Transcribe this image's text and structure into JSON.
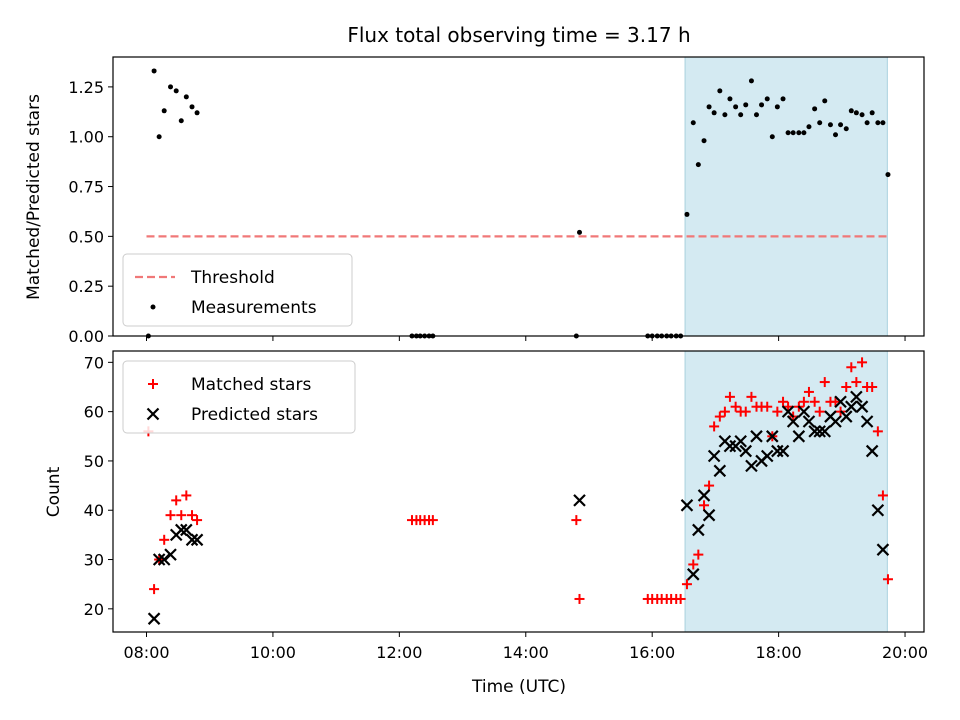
{
  "figure": {
    "title": "Flux total observing time = 3.17 h",
    "xlabel": "Time (UTC)",
    "x_ticks": [
      "08:00",
      "10:00",
      "12:00",
      "14:00",
      "16:00",
      "18:00",
      "20:00"
    ]
  },
  "chart_data": [
    {
      "type": "scatter",
      "ylabel": "Matched/Predicted stars",
      "xlim": [
        7.47,
        20.3
      ],
      "ylim": [
        0,
        1.4
      ],
      "y_ticks": [
        "0.00",
        "0.25",
        "0.50",
        "0.75",
        "1.00",
        "1.25"
      ],
      "shaded_span": [
        16.52,
        19.72
      ],
      "shade_color": "#d4eaf2",
      "legend": "lower-left",
      "threshold": {
        "name": "Threshold",
        "value": 0.5,
        "x": [
          8.0,
          19.72
        ],
        "color": "#f07878"
      },
      "series": [
        {
          "name": "Measurements",
          "color": "#000000",
          "points": [
            [
              8.03,
              0.0
            ],
            [
              8.12,
              1.33
            ],
            [
              8.2,
              1.0
            ],
            [
              8.28,
              1.13
            ],
            [
              8.38,
              1.25
            ],
            [
              8.47,
              1.23
            ],
            [
              8.55,
              1.08
            ],
            [
              8.63,
              1.2
            ],
            [
              8.72,
              1.15
            ],
            [
              8.8,
              1.12
            ],
            [
              12.2,
              0.0
            ],
            [
              12.27,
              0.0
            ],
            [
              12.33,
              0.0
            ],
            [
              12.4,
              0.0
            ],
            [
              12.47,
              0.0
            ],
            [
              12.53,
              0.0
            ],
            [
              14.8,
              0.0
            ],
            [
              14.85,
              0.52
            ],
            [
              15.93,
              0.0
            ],
            [
              16.0,
              0.0
            ],
            [
              16.08,
              0.0
            ],
            [
              16.15,
              0.0
            ],
            [
              16.23,
              0.0
            ],
            [
              16.3,
              0.0
            ],
            [
              16.38,
              0.0
            ],
            [
              16.45,
              0.0
            ],
            [
              16.55,
              0.61
            ],
            [
              16.65,
              1.07
            ],
            [
              16.73,
              0.86
            ],
            [
              16.82,
              0.98
            ],
            [
              16.9,
              1.15
            ],
            [
              16.98,
              1.12
            ],
            [
              17.07,
              1.23
            ],
            [
              17.15,
              1.11
            ],
            [
              17.23,
              1.19
            ],
            [
              17.32,
              1.15
            ],
            [
              17.4,
              1.11
            ],
            [
              17.48,
              1.16
            ],
            [
              17.57,
              1.28
            ],
            [
              17.65,
              1.11
            ],
            [
              17.73,
              1.16
            ],
            [
              17.82,
              1.19
            ],
            [
              17.9,
              1.0
            ],
            [
              17.98,
              1.15
            ],
            [
              18.07,
              1.19
            ],
            [
              18.15,
              1.02
            ],
            [
              18.23,
              1.02
            ],
            [
              18.32,
              1.02
            ],
            [
              18.4,
              1.02
            ],
            [
              18.48,
              1.05
            ],
            [
              18.57,
              1.14
            ],
            [
              18.65,
              1.07
            ],
            [
              18.73,
              1.18
            ],
            [
              18.82,
              1.06
            ],
            [
              18.9,
              1.01
            ],
            [
              18.98,
              1.06
            ],
            [
              19.07,
              1.04
            ],
            [
              19.15,
              1.13
            ],
            [
              19.23,
              1.12
            ],
            [
              19.32,
              1.11
            ],
            [
              19.4,
              1.07
            ],
            [
              19.48,
              1.12
            ],
            [
              19.57,
              1.07
            ],
            [
              19.65,
              1.07
            ],
            [
              19.73,
              0.81
            ]
          ]
        }
      ]
    },
    {
      "type": "scatter",
      "ylabel": "Count",
      "xlim": [
        7.47,
        20.3
      ],
      "ylim": [
        15.3,
        72.3
      ],
      "y_ticks": [
        "20",
        "30",
        "40",
        "50",
        "60",
        "70"
      ],
      "shaded_span": [
        16.52,
        19.72
      ],
      "shade_color": "#d4eaf2",
      "legend": "upper-left",
      "series": [
        {
          "name": "Matched stars",
          "marker": "plus",
          "color": "#ff0000",
          "points": [
            [
              8.03,
              56
            ],
            [
              8.12,
              24
            ],
            [
              8.2,
              30
            ],
            [
              8.28,
              34
            ],
            [
              8.38,
              39
            ],
            [
              8.47,
              42
            ],
            [
              8.55,
              39
            ],
            [
              8.63,
              43
            ],
            [
              8.72,
              39
            ],
            [
              8.8,
              38
            ],
            [
              12.2,
              38
            ],
            [
              12.27,
              38
            ],
            [
              12.33,
              38
            ],
            [
              12.4,
              38
            ],
            [
              12.47,
              38
            ],
            [
              12.53,
              38
            ],
            [
              14.8,
              38
            ],
            [
              14.85,
              22
            ],
            [
              15.93,
              22
            ],
            [
              16.0,
              22
            ],
            [
              16.08,
              22
            ],
            [
              16.15,
              22
            ],
            [
              16.23,
              22
            ],
            [
              16.3,
              22
            ],
            [
              16.38,
              22
            ],
            [
              16.45,
              22
            ],
            [
              16.55,
              25
            ],
            [
              16.65,
              29
            ],
            [
              16.73,
              31
            ],
            [
              16.82,
              41
            ],
            [
              16.9,
              45
            ],
            [
              16.98,
              57
            ],
            [
              17.07,
              59
            ],
            [
              17.15,
              60
            ],
            [
              17.23,
              63
            ],
            [
              17.32,
              61
            ],
            [
              17.4,
              60
            ],
            [
              17.48,
              60
            ],
            [
              17.57,
              63
            ],
            [
              17.65,
              61
            ],
            [
              17.73,
              61
            ],
            [
              17.82,
              61
            ],
            [
              17.9,
              55
            ],
            [
              17.98,
              60
            ],
            [
              18.07,
              62
            ],
            [
              18.15,
              61
            ],
            [
              18.23,
              59
            ],
            [
              18.32,
              61
            ],
            [
              18.4,
              62
            ],
            [
              18.48,
              64
            ],
            [
              18.57,
              62
            ],
            [
              18.65,
              60
            ],
            [
              18.73,
              66
            ],
            [
              18.82,
              62
            ],
            [
              18.9,
              62
            ],
            [
              18.98,
              60
            ],
            [
              19.07,
              65
            ],
            [
              19.15,
              69
            ],
            [
              19.23,
              66
            ],
            [
              19.32,
              70
            ],
            [
              19.4,
              65
            ],
            [
              19.48,
              65
            ],
            [
              19.57,
              56
            ],
            [
              19.65,
              43
            ],
            [
              19.73,
              26
            ]
          ]
        },
        {
          "name": "Predicted stars",
          "marker": "x",
          "color": "#000000",
          "points": [
            [
              8.12,
              18
            ],
            [
              8.2,
              30
            ],
            [
              8.28,
              30
            ],
            [
              8.38,
              31
            ],
            [
              8.47,
              35
            ],
            [
              8.55,
              36
            ],
            [
              8.63,
              36
            ],
            [
              8.72,
              34
            ],
            [
              8.8,
              34
            ],
            [
              14.85,
              42
            ],
            [
              16.55,
              41
            ],
            [
              16.65,
              27
            ],
            [
              16.73,
              36
            ],
            [
              16.82,
              43
            ],
            [
              16.9,
              39
            ],
            [
              16.98,
              51
            ],
            [
              17.07,
              48
            ],
            [
              17.15,
              54
            ],
            [
              17.23,
              53
            ],
            [
              17.32,
              53
            ],
            [
              17.4,
              54
            ],
            [
              17.48,
              52
            ],
            [
              17.57,
              49
            ],
            [
              17.65,
              55
            ],
            [
              17.73,
              50
            ],
            [
              17.82,
              51
            ],
            [
              17.9,
              55
            ],
            [
              17.98,
              52
            ],
            [
              18.07,
              52
            ],
            [
              18.15,
              60
            ],
            [
              18.23,
              58
            ],
            [
              18.32,
              55
            ],
            [
              18.4,
              60
            ],
            [
              18.48,
              58
            ],
            [
              18.57,
              56
            ],
            [
              18.65,
              56
            ],
            [
              18.73,
              56
            ],
            [
              18.82,
              59
            ],
            [
              18.9,
              58
            ],
            [
              18.98,
              62
            ],
            [
              19.07,
              59
            ],
            [
              19.15,
              61
            ],
            [
              19.23,
              63
            ],
            [
              19.32,
              61
            ],
            [
              19.4,
              58
            ],
            [
              19.48,
              52
            ],
            [
              19.57,
              40
            ],
            [
              19.65,
              32
            ]
          ]
        }
      ]
    }
  ]
}
